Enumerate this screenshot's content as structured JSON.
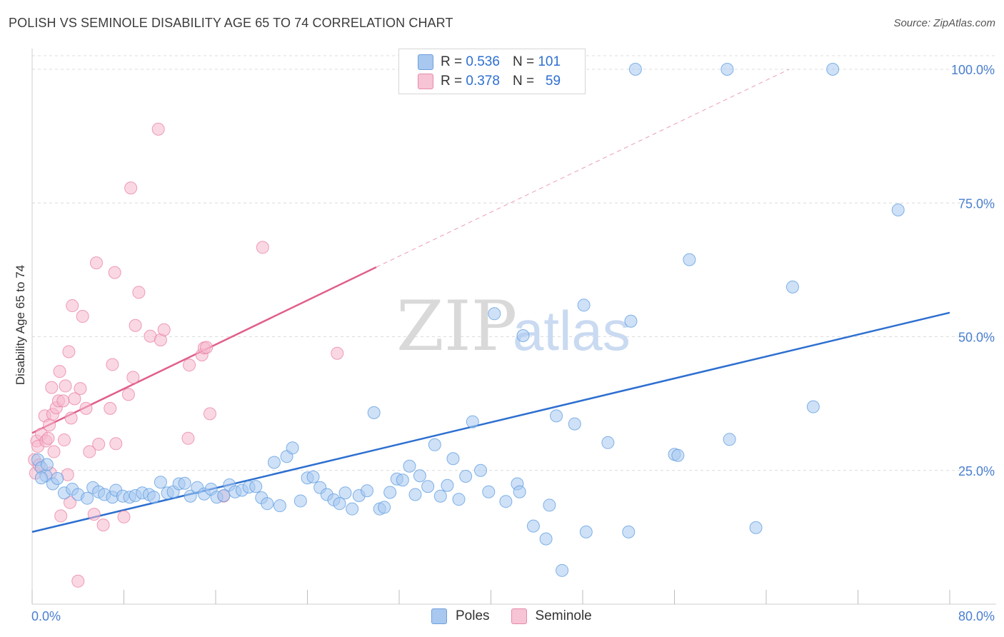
{
  "title": "POLISH VS SEMINOLE DISABILITY AGE 65 TO 74 CORRELATION CHART",
  "source": "Source: ZipAtlas.com",
  "watermark": {
    "zip": "ZIP",
    "atlas": "atlas"
  },
  "legend_top": {
    "rows": [
      {
        "r_label": "R =",
        "r_value": "0.536",
        "n_label": "N =",
        "n_value": "101",
        "color": "#a8c8f0"
      },
      {
        "r_label": "R =",
        "r_value": "0.378",
        "n_label": "N =",
        "n_value": "59",
        "color": "#f6b8cc"
      }
    ]
  },
  "legend_bottom": [
    {
      "label": "Poles",
      "color": "#a8c8f0"
    },
    {
      "label": "Seminole",
      "color": "#f6b8cc"
    }
  ],
  "chart_data": {
    "type": "scatter",
    "title": "POLISH VS SEMINOLE DISABILITY AGE 65 TO 74 CORRELATION CHART",
    "xlabel": "",
    "ylabel": "Disability Age 65 to 74",
    "xlim": [
      0,
      80
    ],
    "ylim": [
      0,
      101
    ],
    "x_tick_labels": [
      "0.0%",
      "80.0%"
    ],
    "y_tick_labels": [
      "25.0%",
      "50.0%",
      "75.0%",
      "100.0%"
    ],
    "y_ticks": [
      25,
      50,
      75,
      100
    ],
    "grid": true,
    "legend_position": "top-center",
    "series": [
      {
        "name": "Poles",
        "color": "#5b9be0",
        "fill": "#a8c8f0",
        "trendline": {
          "x": [
            0,
            80
          ],
          "y": [
            13.5,
            54.5
          ],
          "style": "solid"
        },
        "points": [
          [
            0.5,
            27
          ],
          [
            0.8,
            25.5
          ],
          [
            1.2,
            24
          ],
          [
            1.8,
            22.5
          ],
          [
            2.2,
            23.5
          ],
          [
            2.8,
            20.8
          ],
          [
            3.5,
            21.5
          ],
          [
            4,
            20.5
          ],
          [
            4.8,
            19.8
          ],
          [
            5.3,
            21.8
          ],
          [
            5.8,
            21
          ],
          [
            6.3,
            20.5
          ],
          [
            7,
            20
          ],
          [
            7.3,
            21.3
          ],
          [
            7.9,
            20.2
          ],
          [
            8.5,
            20
          ],
          [
            9,
            20.3
          ],
          [
            9.6,
            20.8
          ],
          [
            10.2,
            20.5
          ],
          [
            10.6,
            20
          ],
          [
            11.2,
            22.8
          ],
          [
            11.8,
            20.8
          ],
          [
            12.3,
            21
          ],
          [
            12.8,
            22.5
          ],
          [
            13.3,
            22.6
          ],
          [
            13.8,
            20.2
          ],
          [
            14.4,
            21.8
          ],
          [
            15,
            20.6
          ],
          [
            15.6,
            21.5
          ],
          [
            16.1,
            20
          ],
          [
            16.7,
            20.3
          ],
          [
            17.2,
            22.3
          ],
          [
            17.7,
            21
          ],
          [
            18.3,
            21.3
          ],
          [
            18.9,
            21.9
          ],
          [
            19.5,
            22
          ],
          [
            20,
            19.9
          ],
          [
            20.5,
            18.8
          ],
          [
            21.1,
            26.5
          ],
          [
            21.6,
            18.4
          ],
          [
            22.2,
            27.6
          ],
          [
            22.7,
            29.2
          ],
          [
            23.4,
            19.3
          ],
          [
            24,
            23.6
          ],
          [
            24.5,
            23.8
          ],
          [
            25.1,
            21.8
          ],
          [
            25.7,
            20.5
          ],
          [
            26.3,
            19.5
          ],
          [
            26.8,
            18.8
          ],
          [
            27.3,
            20.8
          ],
          [
            27.9,
            17.8
          ],
          [
            28.5,
            20.3
          ],
          [
            29.2,
            21.2
          ],
          [
            29.8,
            35.8
          ],
          [
            30.3,
            17.8
          ],
          [
            30.7,
            18.1
          ],
          [
            31.2,
            20.9
          ],
          [
            31.8,
            23.4
          ],
          [
            32.3,
            23.2
          ],
          [
            32.9,
            25.8
          ],
          [
            33.4,
            20.5
          ],
          [
            33.8,
            24
          ],
          [
            34.5,
            22
          ],
          [
            35.1,
            29.8
          ],
          [
            35.6,
            20.2
          ],
          [
            36.2,
            22.2
          ],
          [
            36.7,
            27.2
          ],
          [
            37.2,
            19.6
          ],
          [
            37.8,
            23.9
          ],
          [
            38.4,
            34.1
          ],
          [
            39.1,
            25
          ],
          [
            39.8,
            21
          ],
          [
            40.3,
            54.3
          ],
          [
            41.3,
            19.2
          ],
          [
            42.3,
            22.5
          ],
          [
            42.5,
            21
          ],
          [
            42.8,
            50.2
          ],
          [
            43.7,
            14.6
          ],
          [
            44.8,
            12.2
          ],
          [
            45.1,
            18.5
          ],
          [
            45.7,
            35.2
          ],
          [
            46.2,
            6.3
          ],
          [
            47.3,
            33.7
          ],
          [
            48.3,
            13.5
          ],
          [
            50.2,
            30.2
          ],
          [
            52,
            13.5
          ],
          [
            52.2,
            52.9
          ],
          [
            52.6,
            100
          ],
          [
            56,
            28
          ],
          [
            56.3,
            27.8
          ],
          [
            57.3,
            64.4
          ],
          [
            60.6,
            100
          ],
          [
            60.8,
            30.8
          ],
          [
            63.1,
            14.3
          ],
          [
            66.3,
            59.3
          ],
          [
            68.1,
            36.9
          ],
          [
            69.8,
            100
          ],
          [
            75.5,
            73.7
          ],
          [
            48.1,
            55.9
          ],
          [
            0.8,
            23.6
          ],
          [
            1.3,
            26.1
          ]
        ]
      },
      {
        "name": "Seminole",
        "color": "#e97f9f",
        "fill": "#f6b8cc",
        "trendline": {
          "x": [
            0,
            30
          ],
          "y": [
            32,
            63
          ],
          "style": "solid",
          "extended_to": [
            66,
            100
          ],
          "extended_style": "dashed"
        },
        "points": [
          [
            0.2,
            27
          ],
          [
            0.3,
            24.5
          ],
          [
            0.4,
            30.5
          ],
          [
            0.5,
            29.5
          ],
          [
            0.6,
            26
          ],
          [
            0.8,
            31.8
          ],
          [
            1.1,
            35.2
          ],
          [
            1.2,
            30.5
          ],
          [
            1.4,
            31
          ],
          [
            1.5,
            33.5
          ],
          [
            1.6,
            24.5
          ],
          [
            1.7,
            40.5
          ],
          [
            1.8,
            35.5
          ],
          [
            1.9,
            28.5
          ],
          [
            2.1,
            36.7
          ],
          [
            2.3,
            38
          ],
          [
            2.4,
            43.5
          ],
          [
            2.5,
            16.5
          ],
          [
            2.7,
            38
          ],
          [
            2.8,
            30.7
          ],
          [
            2.9,
            40.8
          ],
          [
            3.1,
            24.2
          ],
          [
            3.2,
            47.2
          ],
          [
            3.3,
            19
          ],
          [
            3.4,
            34.8
          ],
          [
            3.5,
            55.8
          ],
          [
            3.7,
            38.4
          ],
          [
            4,
            4.3
          ],
          [
            4.2,
            40.3
          ],
          [
            4.4,
            53.8
          ],
          [
            4.7,
            36.6
          ],
          [
            5,
            28.5
          ],
          [
            5.4,
            16.8
          ],
          [
            5.6,
            63.8
          ],
          [
            5.8,
            29.9
          ],
          [
            6.2,
            14.8
          ],
          [
            6.8,
            36.6
          ],
          [
            7,
            44.8
          ],
          [
            7.2,
            62
          ],
          [
            7.3,
            30
          ],
          [
            8,
            16.3
          ],
          [
            8.4,
            39.2
          ],
          [
            8.6,
            77.8
          ],
          [
            8.8,
            42.4
          ],
          [
            9,
            52.1
          ],
          [
            9.3,
            58.3
          ],
          [
            10.3,
            50.1
          ],
          [
            11,
            88.8
          ],
          [
            11.2,
            49.4
          ],
          [
            11.5,
            51.3
          ],
          [
            13.6,
            31
          ],
          [
            13.7,
            44.7
          ],
          [
            14.8,
            46.6
          ],
          [
            15,
            47.9
          ],
          [
            15.2,
            48
          ],
          [
            15.5,
            35.6
          ],
          [
            16.7,
            20.2
          ],
          [
            20.1,
            66.7
          ],
          [
            26.6,
            46.9
          ]
        ]
      }
    ]
  }
}
